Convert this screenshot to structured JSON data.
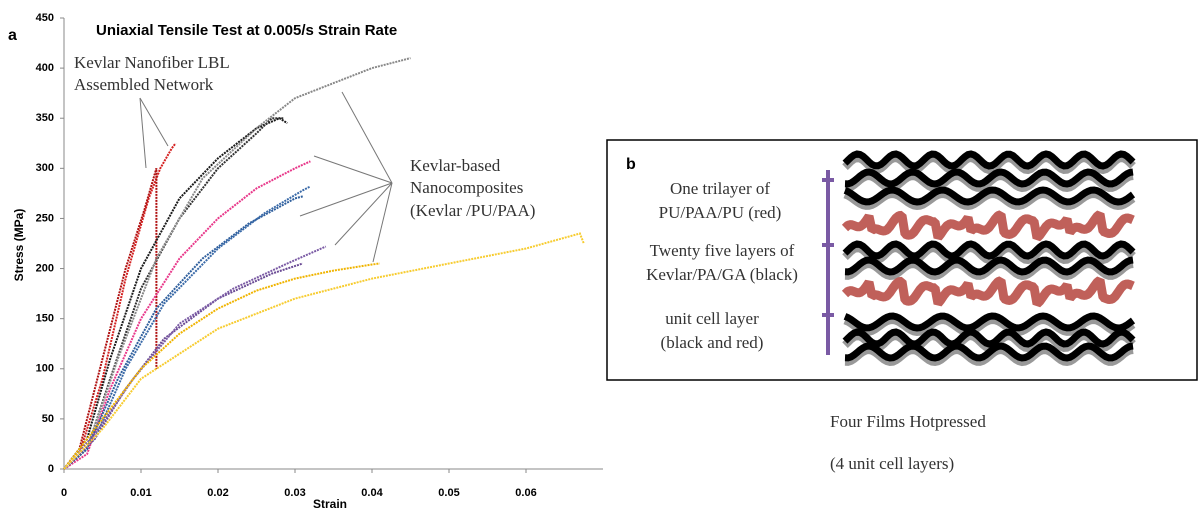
{
  "chart_data": {
    "type": "line",
    "panel_label": "a",
    "title": "Uniaxial Tensile Test at 0.005/s Strain Rate",
    "x_label": "Strain",
    "y_label": "Stress (MPa)",
    "xlim": [
      0,
      0.07
    ],
    "ylim": [
      0,
      450
    ],
    "xticks": [
      0,
      0.01,
      0.02,
      0.03,
      0.04,
      0.05,
      0.06
    ],
    "yticks": [
      0,
      50,
      100,
      150,
      200,
      250,
      300,
      350,
      400,
      450
    ],
    "annotations": [
      [
        "Kevlar Nanofiber LBL",
        "Assembled Network"
      ],
      [
        "Kevlar-based",
        "Nanocomposites",
        "(Kevlar /PU/PAA)"
      ]
    ],
    "series": [
      {
        "color": "#d42020",
        "x": [
          0,
          0.002,
          0.005,
          0.008,
          0.011,
          0.0125,
          0.014,
          0.0145
        ],
        "y": [
          0,
          15,
          90,
          190,
          270,
          300,
          320,
          325
        ]
      },
      {
        "color": "#b01010",
        "x": [
          0,
          0.002,
          0.005,
          0.008,
          0.0105,
          0.012,
          0.012
        ],
        "y": [
          0,
          20,
          110,
          200,
          260,
          300,
          100
        ]
      },
      {
        "color": "#1a1a1a",
        "x": [
          0,
          0.003,
          0.006,
          0.01,
          0.015,
          0.02,
          0.025,
          0.028,
          0.029
        ],
        "y": [
          0,
          30,
          110,
          200,
          270,
          310,
          340,
          350,
          345
        ]
      },
      {
        "color": "#333333",
        "x": [
          0,
          0.003,
          0.006,
          0.01,
          0.015,
          0.02,
          0.025,
          0.027,
          0.0285
        ],
        "y": [
          0,
          20,
          90,
          180,
          250,
          300,
          335,
          350,
          350
        ]
      },
      {
        "color": "#888888",
        "x": [
          0,
          0.003,
          0.007,
          0.012,
          0.018,
          0.025,
          0.03,
          0.035,
          0.04,
          0.045
        ],
        "y": [
          0,
          20,
          110,
          210,
          290,
          340,
          370,
          385,
          400,
          410
        ]
      },
      {
        "color": "#e8388a",
        "x": [
          0,
          0.003,
          0.006,
          0.01,
          0.015,
          0.02,
          0.025,
          0.03,
          0.032
        ],
        "y": [
          0,
          15,
          80,
          150,
          210,
          250,
          280,
          300,
          307
        ]
      },
      {
        "color": "#2e5e9c",
        "x": [
          0,
          0.003,
          0.007,
          0.012,
          0.018,
          0.024,
          0.03,
          0.031
        ],
        "y": [
          0,
          20,
          90,
          160,
          210,
          245,
          270,
          272
        ]
      },
      {
        "color": "#3a6aa8",
        "x": [
          0,
          0.004,
          0.008,
          0.013,
          0.02,
          0.026,
          0.031,
          0.032
        ],
        "y": [
          0,
          30,
          100,
          165,
          220,
          255,
          278,
          282
        ]
      },
      {
        "color": "#6a4a94",
        "x": [
          0,
          0.004,
          0.008,
          0.013,
          0.02,
          0.027,
          0.031
        ],
        "y": [
          0,
          30,
          80,
          130,
          170,
          195,
          205
        ]
      },
      {
        "color": "#7a5aa4",
        "x": [
          0,
          0.004,
          0.009,
          0.015,
          0.022,
          0.029,
          0.034
        ],
        "y": [
          0,
          35,
          90,
          145,
          180,
          205,
          222
        ]
      },
      {
        "color": "#f0b400",
        "x": [
          0,
          0.005,
          0.01,
          0.015,
          0.02,
          0.025,
          0.03,
          0.035,
          0.04,
          0.041
        ],
        "y": [
          0,
          50,
          100,
          135,
          160,
          178,
          190,
          198,
          204,
          205
        ]
      },
      {
        "color": "#f7cc30",
        "x": [
          0,
          0.005,
          0.01,
          0.02,
          0.03,
          0.04,
          0.05,
          0.06,
          0.067,
          0.0675
        ],
        "y": [
          0,
          40,
          90,
          140,
          170,
          190,
          205,
          220,
          235,
          225
        ]
      }
    ]
  },
  "diagram": {
    "panel_label": "b",
    "labels": [
      [
        "One trilayer of",
        "PU/PAA/PU (red)"
      ],
      [
        "Twenty five layers of",
        "Kevlar/PA/GA (black)"
      ],
      [
        "unit cell layer",
        "(black and red)"
      ]
    ],
    "caption": [
      "Four Films Hotpressed",
      "(4 unit cell layers)"
    ]
  }
}
